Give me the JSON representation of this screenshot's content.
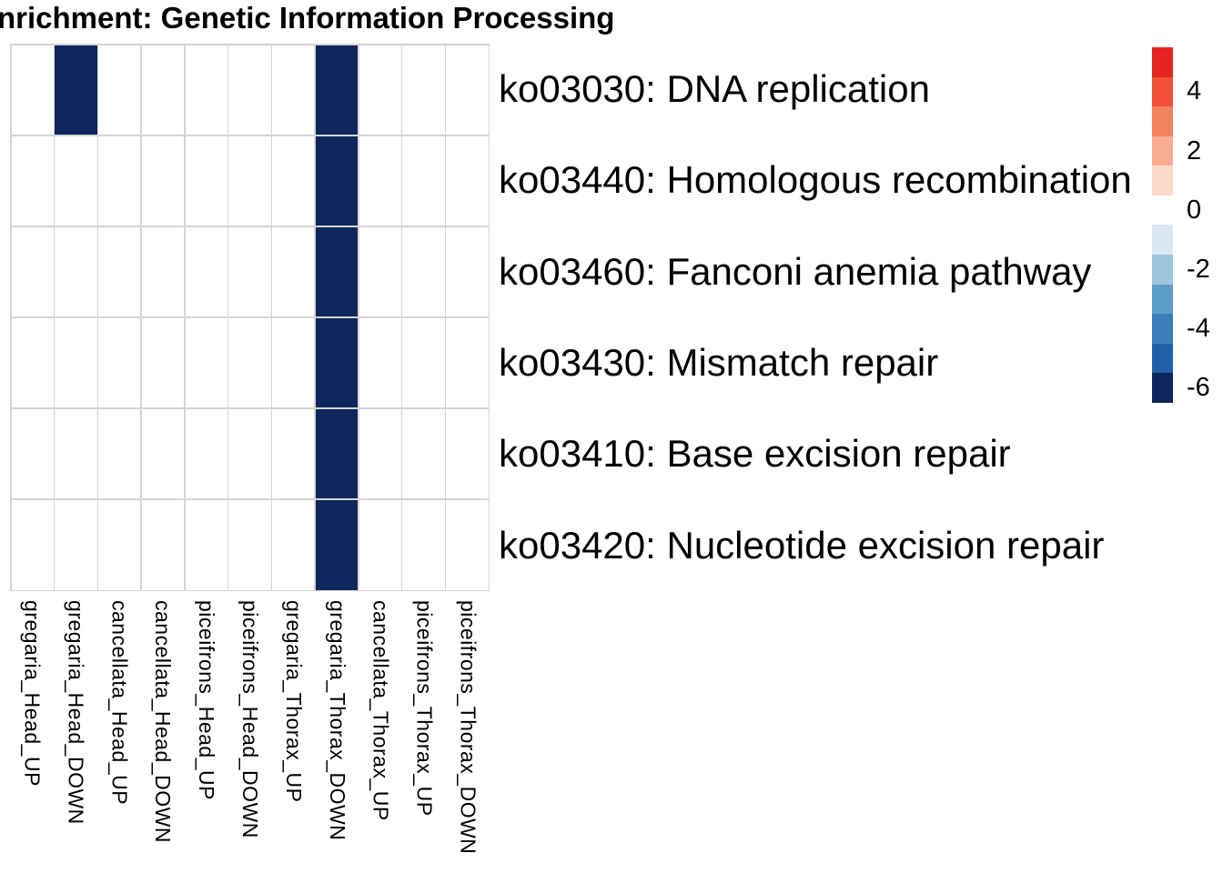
{
  "title": "nrichment: Genetic Information Processing",
  "chart_data": {
    "type": "heatmap",
    "title": "nrichment: Genetic Information Processing",
    "columns": [
      "gregaria_Head_UP",
      "gregaria_Head_DOWN",
      "cancellata_Head_UP",
      "cancellata_Head_DOWN",
      "piceifrons_Head_UP",
      "piceifrons_Head_DOWN",
      "gregaria_Thorax_UP",
      "gregaria_Thorax_DOWN",
      "cancellata_Thorax_UP",
      "piceifrons_Thorax_UP",
      "piceifrons_Thorax_DOWN"
    ],
    "rows": [
      "ko03030: DNA replication",
      "ko03440: Homologous recombination",
      "ko03460: Fanconi anemia pathway",
      "ko03430: Mismatch repair",
      "ko03410: Base excision repair",
      "ko03420: Nucleotide excision repair"
    ],
    "matrix": [
      [
        null,
        -6,
        null,
        null,
        null,
        null,
        null,
        -6,
        null,
        null,
        null
      ],
      [
        null,
        null,
        null,
        null,
        null,
        null,
        null,
        -6,
        null,
        null,
        null
      ],
      [
        null,
        null,
        null,
        null,
        null,
        null,
        null,
        -6,
        null,
        null,
        null
      ],
      [
        null,
        null,
        null,
        null,
        null,
        null,
        null,
        -6,
        null,
        null,
        null
      ],
      [
        null,
        null,
        null,
        null,
        null,
        null,
        null,
        -6,
        null,
        null,
        null
      ],
      [
        null,
        null,
        null,
        null,
        null,
        null,
        null,
        -6,
        null,
        null,
        null
      ]
    ],
    "legend_position": "right",
    "colorscale": {
      "blocks": [
        {
          "value": 5,
          "color": "#e62420"
        },
        {
          "value": 4,
          "color": "#f3503a"
        },
        {
          "value": 3,
          "color": "#f5815f"
        },
        {
          "value": 2,
          "color": "#f8ad90"
        },
        {
          "value": 1,
          "color": "#fcd9c9"
        },
        {
          "value": 0,
          "color": "#ffffff"
        },
        {
          "value": -1,
          "color": "#dbe7f2"
        },
        {
          "value": -2,
          "color": "#9fc4de"
        },
        {
          "value": -3,
          "color": "#5d9ec9"
        },
        {
          "value": -4,
          "color": "#3c7eba"
        },
        {
          "value": -5,
          "color": "#2061aa"
        },
        {
          "value": -6,
          "color": "#0f265c"
        }
      ],
      "tick_values": [
        4,
        2,
        0,
        -2,
        -4,
        -6
      ],
      "tick_labels": [
        "4",
        "2",
        "0",
        "-2",
        "-4",
        "-6"
      ]
    },
    "colors": {
      "cell_empty": "#ffffff",
      "cell_filled": "#0f265c",
      "grid_line": "#d5d5d5",
      "text": "#000000"
    }
  }
}
